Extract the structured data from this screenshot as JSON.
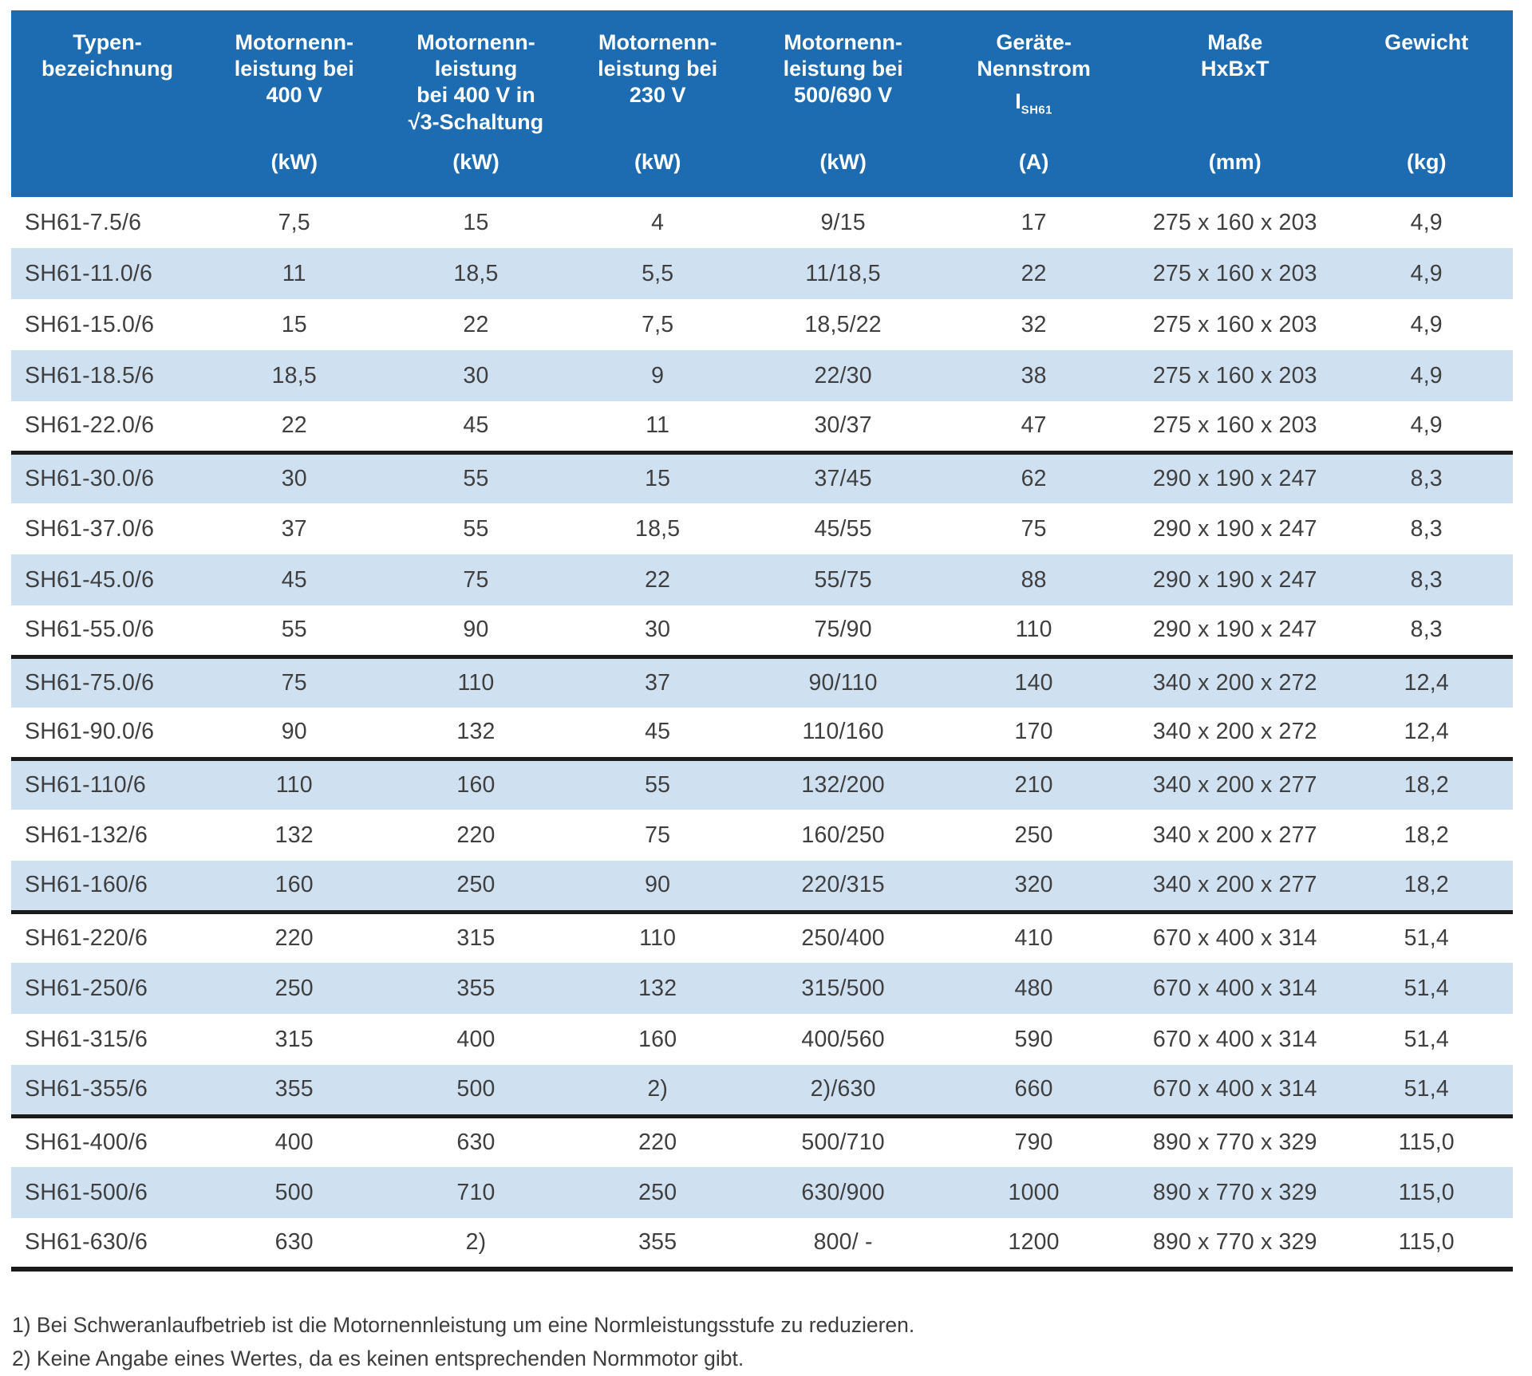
{
  "colors": {
    "header_background": "#1d6bb1",
    "header_text": "#ffffff",
    "row_stripe": "#cfe0f1",
    "group_separator": "#1a1a1a",
    "body_text": "#3f3f3f"
  },
  "table": {
    "columns": [
      {
        "id": "typenbezeichnung",
        "title": "Typen-\nbezeichnung",
        "unit": ""
      },
      {
        "id": "leistung-400v",
        "title": "Motornenn-\nleistung bei\n400 V",
        "unit": "(kW)"
      },
      {
        "id": "leistung-400v-wurzel3",
        "title": "Motornenn-\nleistung\nbei 400 V in\n√3-Schaltung",
        "unit": "(kW)"
      },
      {
        "id": "leistung-230v",
        "title": "Motornenn-\nleistung bei\n230 V",
        "unit": "(kW)"
      },
      {
        "id": "leistung-500-690v",
        "title": "Motornenn-\nleistung bei\n500/690 V",
        "unit": "(kW)"
      },
      {
        "id": "geraete-nennstrom",
        "title": "Geräte-\nNennstrom",
        "symbol": {
          "base": "I",
          "sub": "SH61"
        },
        "unit": "(A)"
      },
      {
        "id": "masse-hxbxt",
        "title": "Maße\nHxBxT",
        "unit": "(mm)"
      },
      {
        "id": "gewicht",
        "title": "Gewicht",
        "unit": "(kg)"
      }
    ],
    "rows": [
      [
        "SH61-7.5/6",
        "7,5",
        "15",
        "4",
        "9/15",
        "17",
        "275 x 160 x 203",
        "4,9"
      ],
      [
        "SH61-11.0/6",
        "11",
        "18,5",
        "5,5",
        "11/18,5",
        "22",
        "275 x 160 x 203",
        "4,9"
      ],
      [
        "SH61-15.0/6",
        "15",
        "22",
        "7,5",
        "18,5/22",
        "32",
        "275 x 160 x 203",
        "4,9"
      ],
      [
        "SH61-18.5/6",
        "18,5",
        "30",
        "9",
        "22/30",
        "38",
        "275 x 160 x 203",
        "4,9"
      ],
      [
        "SH61-22.0/6",
        "22",
        "45",
        "11",
        "30/37",
        "47",
        "275 x 160 x 203",
        "4,9"
      ],
      [
        "SH61-30.0/6",
        "30",
        "55",
        "15",
        "37/45",
        "62",
        "290 x 190 x 247",
        "8,3"
      ],
      [
        "SH61-37.0/6",
        "37",
        "55",
        "18,5",
        "45/55",
        "75",
        "290 x 190 x 247",
        "8,3"
      ],
      [
        "SH61-45.0/6",
        "45",
        "75",
        "22",
        "55/75",
        "88",
        "290 x 190 x 247",
        "8,3"
      ],
      [
        "SH61-55.0/6",
        "55",
        "90",
        "30",
        "75/90",
        "110",
        "290 x 190 x 247",
        "8,3"
      ],
      [
        "SH61-75.0/6",
        "75",
        "110",
        "37",
        "90/110",
        "140",
        "340 x 200 x 272",
        "12,4"
      ],
      [
        "SH61-90.0/6",
        "90",
        "132",
        "45",
        "110/160",
        "170",
        "340 x 200 x 272",
        "12,4"
      ],
      [
        "SH61-110/6",
        "110",
        "160",
        "55",
        "132/200",
        "210",
        "340 x 200 x 277",
        "18,2"
      ],
      [
        "SH61-132/6",
        "132",
        "220",
        "75",
        "160/250",
        "250",
        "340 x 200 x 277",
        "18,2"
      ],
      [
        "SH61-160/6",
        "160",
        "250",
        "90",
        "220/315",
        "320",
        "340 x 200 x 277",
        "18,2"
      ],
      [
        "SH61-220/6",
        "220",
        "315",
        "110",
        "250/400",
        "410",
        "670 x 400 x 314",
        "51,4"
      ],
      [
        "SH61-250/6",
        "250",
        "355",
        "132",
        "315/500",
        "480",
        "670 x 400 x 314",
        "51,4"
      ],
      [
        "SH61-315/6",
        "315",
        "400",
        "160",
        "400/560",
        "590",
        "670 x 400 x 314",
        "51,4"
      ],
      [
        "SH61-355/6",
        "355",
        "500",
        "2)",
        "2)/630",
        "660",
        "670 x 400 x 314",
        "51,4"
      ],
      [
        "SH61-400/6",
        "400",
        "630",
        "220",
        "500/710",
        "790",
        "890 x 770 x 329",
        "115,0"
      ],
      [
        "SH61-500/6",
        "500",
        "710",
        "250",
        "630/900",
        "1000",
        "890 x 770 x 329",
        "115,0"
      ],
      [
        "SH61-630/6",
        "630",
        "2)",
        "355",
        "800/ -",
        "1200",
        "890 x 770 x 329",
        "115,0"
      ]
    ],
    "group_start_rows": [
      6,
      10,
      12,
      15,
      19
    ]
  },
  "footnotes": [
    "1) Bei Schweranlaufbetrieb ist die Motornennleistung um eine Normleistungsstufe zu reduzieren.",
    "2) Keine Angabe eines Wertes, da es keinen entsprechenden Normmotor gibt."
  ]
}
